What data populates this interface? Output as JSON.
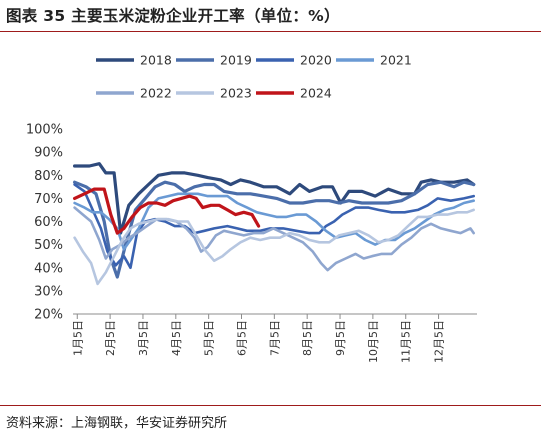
{
  "figure": {
    "title": "图表 35 主要玉米淀粉企业开工率（单位：%）",
    "source": "资料来源：上海钢联，华安证券研究所"
  },
  "chart_data": {
    "type": "line",
    "ylim": [
      20,
      100
    ],
    "ytick_values": [
      20,
      30,
      40,
      50,
      60,
      70,
      80,
      90,
      100
    ],
    "ytick_labels": [
      "20%",
      "30%",
      "40%",
      "50%",
      "60%",
      "70%",
      "80%",
      "90%",
      "100%"
    ],
    "xlim": [
      0,
      12.3
    ],
    "xtick_values": [
      0.13,
      1.13,
      2.13,
      3.13,
      4.13,
      5.13,
      6.13,
      7.13,
      8.13,
      9.13,
      10.13,
      11.13
    ],
    "xtick_labels": [
      "1月5日",
      "2月5日",
      "3月5日",
      "4月5日",
      "5月5日",
      "6月5日",
      "7月5日",
      "8月5日",
      "9月5日",
      "10月5日",
      "11月5日",
      "12月5日"
    ],
    "grid": false,
    "legend_position": "top",
    "series": [
      {
        "name": "2018",
        "color": "#2e4a7c",
        "width": 3.2,
        "points": [
          [
            0.05,
            84
          ],
          [
            0.5,
            84
          ],
          [
            0.8,
            85
          ],
          [
            1.0,
            81
          ],
          [
            1.25,
            81
          ],
          [
            1.45,
            55
          ],
          [
            1.7,
            67
          ],
          [
            2.0,
            72
          ],
          [
            2.3,
            76
          ],
          [
            2.6,
            80
          ],
          [
            3.0,
            81
          ],
          [
            3.4,
            81
          ],
          [
            3.8,
            80
          ],
          [
            4.1,
            79
          ],
          [
            4.5,
            78
          ],
          [
            4.8,
            76
          ],
          [
            5.1,
            78
          ],
          [
            5.4,
            77
          ],
          [
            5.8,
            75
          ],
          [
            6.2,
            75
          ],
          [
            6.6,
            72
          ],
          [
            6.9,
            76
          ],
          [
            7.2,
            73
          ],
          [
            7.6,
            75
          ],
          [
            7.9,
            75
          ],
          [
            8.15,
            68
          ],
          [
            8.4,
            73
          ],
          [
            8.8,
            73
          ],
          [
            9.2,
            71
          ],
          [
            9.6,
            74
          ],
          [
            10.0,
            72
          ],
          [
            10.4,
            72
          ],
          [
            10.6,
            77
          ],
          [
            10.9,
            78
          ],
          [
            11.2,
            77
          ],
          [
            11.6,
            77
          ],
          [
            12.0,
            78
          ],
          [
            12.2,
            76
          ]
        ]
      },
      {
        "name": "2019",
        "color": "#4b6eaa",
        "width": 3.2,
        "points": [
          [
            0.05,
            77
          ],
          [
            0.4,
            75
          ],
          [
            0.7,
            72
          ],
          [
            0.95,
            60
          ],
          [
            1.15,
            44
          ],
          [
            1.35,
            36
          ],
          [
            1.6,
            50
          ],
          [
            1.9,
            65
          ],
          [
            2.2,
            70
          ],
          [
            2.5,
            75
          ],
          [
            2.8,
            77
          ],
          [
            3.1,
            76
          ],
          [
            3.4,
            73
          ],
          [
            3.7,
            75
          ],
          [
            4.0,
            76
          ],
          [
            4.3,
            76
          ],
          [
            4.6,
            73
          ],
          [
            5.0,
            72
          ],
          [
            5.4,
            72
          ],
          [
            5.8,
            71
          ],
          [
            6.2,
            70
          ],
          [
            6.6,
            68
          ],
          [
            7.0,
            68
          ],
          [
            7.4,
            69
          ],
          [
            7.8,
            69
          ],
          [
            8.1,
            68
          ],
          [
            8.4,
            69
          ],
          [
            8.8,
            68
          ],
          [
            9.2,
            68
          ],
          [
            9.6,
            68
          ],
          [
            10.0,
            69
          ],
          [
            10.4,
            72
          ],
          [
            10.8,
            76
          ],
          [
            11.2,
            77
          ],
          [
            11.6,
            75
          ],
          [
            11.9,
            77
          ],
          [
            12.2,
            76
          ]
        ]
      },
      {
        "name": "2020",
        "color": "#3a62b0",
        "width": 2.6,
        "points": [
          [
            0.05,
            76
          ],
          [
            0.35,
            73
          ],
          [
            0.6,
            65
          ],
          [
            0.85,
            57
          ],
          [
            1.05,
            47
          ],
          [
            1.3,
            41
          ],
          [
            1.55,
            45
          ],
          [
            1.75,
            40
          ],
          [
            1.95,
            55
          ],
          [
            2.2,
            60
          ],
          [
            2.5,
            61
          ],
          [
            2.8,
            60
          ],
          [
            3.1,
            58
          ],
          [
            3.4,
            58
          ],
          [
            3.7,
            55
          ],
          [
            4.0,
            56
          ],
          [
            4.3,
            57
          ],
          [
            4.7,
            58
          ],
          [
            5.0,
            57
          ],
          [
            5.3,
            56
          ],
          [
            5.7,
            56
          ],
          [
            6.0,
            57
          ],
          [
            6.4,
            57
          ],
          [
            6.8,
            56
          ],
          [
            7.2,
            55
          ],
          [
            7.5,
            55
          ],
          [
            7.7,
            58
          ],
          [
            7.95,
            60
          ],
          [
            8.2,
            63
          ],
          [
            8.6,
            66
          ],
          [
            9.0,
            66
          ],
          [
            9.3,
            65
          ],
          [
            9.7,
            64
          ],
          [
            10.1,
            64
          ],
          [
            10.5,
            65
          ],
          [
            10.8,
            67
          ],
          [
            11.1,
            70
          ],
          [
            11.5,
            69
          ],
          [
            11.9,
            70
          ],
          [
            12.2,
            71
          ]
        ]
      },
      {
        "name": "2021",
        "color": "#6a9ad4",
        "width": 2.6,
        "points": [
          [
            0.05,
            68
          ],
          [
            0.35,
            66
          ],
          [
            0.6,
            64
          ],
          [
            0.85,
            64
          ],
          [
            1.1,
            61
          ],
          [
            1.35,
            57
          ],
          [
            1.55,
            48
          ],
          [
            1.75,
            52
          ],
          [
            2.0,
            57
          ],
          [
            2.3,
            66
          ],
          [
            2.6,
            70
          ],
          [
            2.9,
            71
          ],
          [
            3.2,
            72
          ],
          [
            3.5,
            72
          ],
          [
            3.8,
            72
          ],
          [
            4.1,
            71
          ],
          [
            4.4,
            71
          ],
          [
            4.7,
            71
          ],
          [
            5.0,
            68
          ],
          [
            5.3,
            66
          ],
          [
            5.6,
            64
          ],
          [
            5.9,
            63
          ],
          [
            6.2,
            62
          ],
          [
            6.5,
            62
          ],
          [
            6.8,
            63
          ],
          [
            7.1,
            63
          ],
          [
            7.4,
            60
          ],
          [
            7.7,
            56
          ],
          [
            8.0,
            53
          ],
          [
            8.3,
            54
          ],
          [
            8.6,
            55
          ],
          [
            8.9,
            52
          ],
          [
            9.2,
            50
          ],
          [
            9.5,
            52
          ],
          [
            9.8,
            52
          ],
          [
            10.1,
            55
          ],
          [
            10.4,
            57
          ],
          [
            10.7,
            60
          ],
          [
            11.0,
            63
          ],
          [
            11.3,
            65
          ],
          [
            11.6,
            66
          ],
          [
            11.9,
            68
          ],
          [
            12.2,
            69
          ]
        ]
      },
      {
        "name": "2022",
        "color": "#8fa6cf",
        "width": 2.6,
        "points": [
          [
            0.05,
            66
          ],
          [
            0.3,
            63
          ],
          [
            0.55,
            60
          ],
          [
            0.8,
            52
          ],
          [
            1.0,
            44
          ],
          [
            1.2,
            48
          ],
          [
            1.45,
            50
          ],
          [
            1.7,
            53
          ],
          [
            1.95,
            55
          ],
          [
            2.25,
            58
          ],
          [
            2.55,
            61
          ],
          [
            2.85,
            61
          ],
          [
            3.15,
            60
          ],
          [
            3.45,
            57
          ],
          [
            3.7,
            53
          ],
          [
            3.9,
            47
          ],
          [
            4.1,
            49
          ],
          [
            4.35,
            54
          ],
          [
            4.6,
            56
          ],
          [
            4.9,
            55
          ],
          [
            5.2,
            54
          ],
          [
            5.5,
            55
          ],
          [
            5.8,
            55
          ],
          [
            6.1,
            57
          ],
          [
            6.4,
            55
          ],
          [
            6.7,
            53
          ],
          [
            7.0,
            51
          ],
          [
            7.3,
            47
          ],
          [
            7.55,
            42
          ],
          [
            7.75,
            39
          ],
          [
            8.0,
            42
          ],
          [
            8.3,
            44
          ],
          [
            8.6,
            46
          ],
          [
            8.85,
            44
          ],
          [
            9.1,
            45
          ],
          [
            9.4,
            46
          ],
          [
            9.7,
            46
          ],
          [
            10.0,
            50
          ],
          [
            10.3,
            53
          ],
          [
            10.6,
            57
          ],
          [
            10.9,
            59
          ],
          [
            11.2,
            57
          ],
          [
            11.5,
            56
          ],
          [
            11.8,
            55
          ],
          [
            12.1,
            57
          ],
          [
            12.2,
            55
          ]
        ]
      },
      {
        "name": "2023",
        "color": "#b6c6e0",
        "width": 2.6,
        "points": [
          [
            0.05,
            53
          ],
          [
            0.3,
            47
          ],
          [
            0.55,
            42
          ],
          [
            0.75,
            33
          ],
          [
            1.0,
            38
          ],
          [
            1.25,
            45
          ],
          [
            1.5,
            52
          ],
          [
            1.75,
            57
          ],
          [
            2.0,
            59
          ],
          [
            2.3,
            60
          ],
          [
            2.6,
            61
          ],
          [
            2.9,
            61
          ],
          [
            3.2,
            60
          ],
          [
            3.5,
            60
          ],
          [
            3.75,
            54
          ],
          [
            4.0,
            48
          ],
          [
            4.3,
            43
          ],
          [
            4.55,
            45
          ],
          [
            4.8,
            48
          ],
          [
            5.1,
            51
          ],
          [
            5.4,
            53
          ],
          [
            5.7,
            52
          ],
          [
            6.0,
            53
          ],
          [
            6.3,
            53
          ],
          [
            6.6,
            55
          ],
          [
            6.9,
            54
          ],
          [
            7.2,
            52
          ],
          [
            7.5,
            51
          ],
          [
            7.8,
            51
          ],
          [
            8.1,
            54
          ],
          [
            8.4,
            55
          ],
          [
            8.7,
            56
          ],
          [
            9.0,
            54
          ],
          [
            9.3,
            51
          ],
          [
            9.6,
            52
          ],
          [
            9.9,
            54
          ],
          [
            10.2,
            58
          ],
          [
            10.5,
            62
          ],
          [
            10.8,
            62
          ],
          [
            11.1,
            63
          ],
          [
            11.4,
            63
          ],
          [
            11.7,
            64
          ],
          [
            12.0,
            64
          ],
          [
            12.2,
            65
          ]
        ]
      },
      {
        "name": "2024",
        "color": "#c0141a",
        "width": 3.2,
        "points": [
          [
            0.05,
            70
          ],
          [
            0.35,
            72
          ],
          [
            0.65,
            74
          ],
          [
            0.95,
            74
          ],
          [
            1.15,
            63
          ],
          [
            1.35,
            55
          ],
          [
            1.55,
            57
          ],
          [
            1.8,
            62
          ],
          [
            2.05,
            66
          ],
          [
            2.3,
            68
          ],
          [
            2.55,
            68
          ],
          [
            2.8,
            67
          ],
          [
            3.05,
            69
          ],
          [
            3.3,
            70
          ],
          [
            3.55,
            71
          ],
          [
            3.75,
            70
          ],
          [
            3.95,
            66
          ],
          [
            4.2,
            67
          ],
          [
            4.45,
            67
          ],
          [
            4.7,
            65
          ],
          [
            4.95,
            63
          ],
          [
            5.2,
            64
          ],
          [
            5.45,
            63
          ],
          [
            5.65,
            58
          ]
        ]
      }
    ]
  }
}
